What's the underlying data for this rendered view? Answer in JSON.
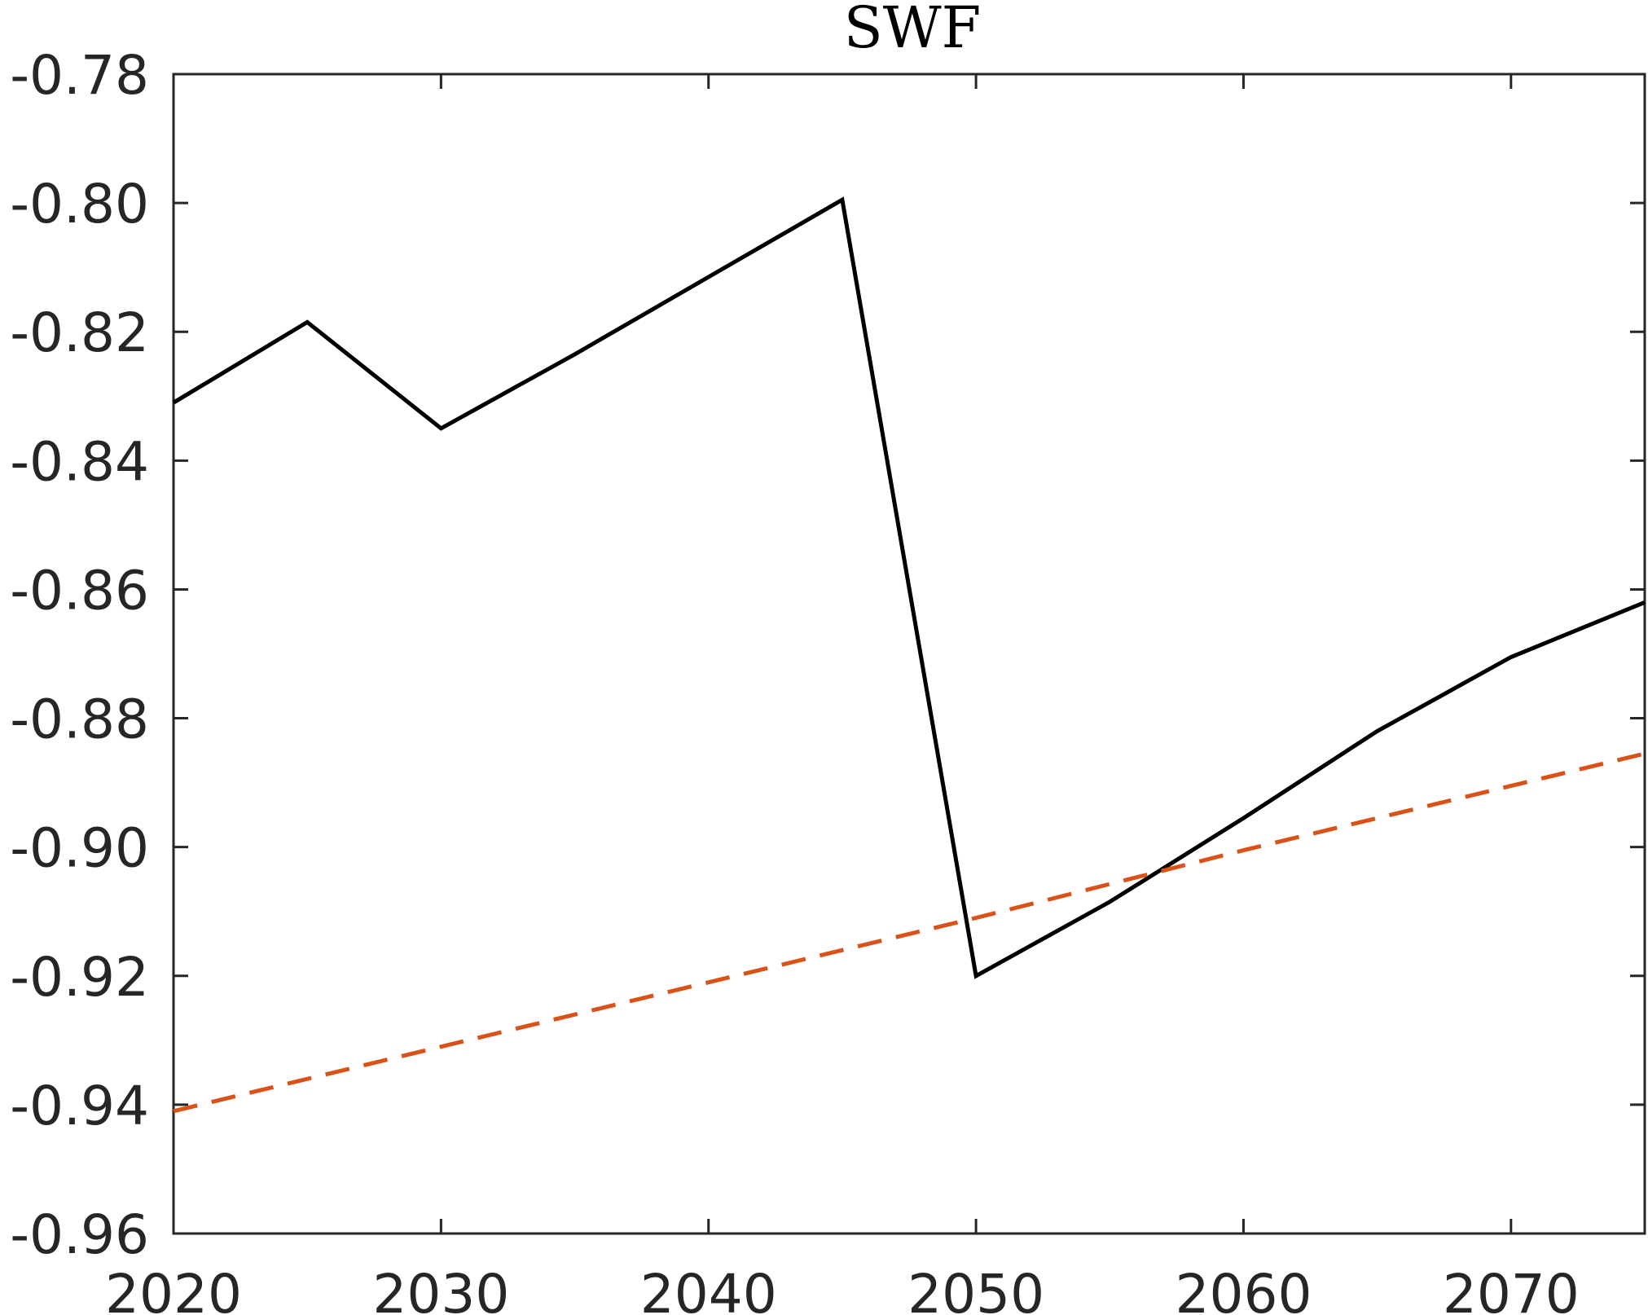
{
  "chart_data": {
    "type": "line",
    "title": "SWF",
    "xlabel": "",
    "ylabel": "",
    "xlim": [
      2020,
      2075
    ],
    "ylim": [
      -0.96,
      -0.78
    ],
    "xticks": [
      2020,
      2030,
      2040,
      2050,
      2060,
      2070
    ],
    "xtick_labels": [
      "2020",
      "2030",
      "2040",
      "2050",
      "2060",
      "2070"
    ],
    "yticks": [
      -0.78,
      -0.8,
      -0.82,
      -0.84,
      -0.86,
      -0.88,
      -0.9,
      -0.92,
      -0.94,
      -0.96
    ],
    "ytick_labels": [
      "-0.78",
      "-0.80",
      "-0.82",
      "-0.84",
      "-0.86",
      "-0.88",
      "-0.90",
      "-0.92",
      "-0.94",
      "-0.96"
    ],
    "grid": false,
    "legend": "none",
    "series": [
      {
        "style": "solid",
        "color": "#000000",
        "x": [
          2020,
          2025,
          2030,
          2035,
          2040,
          2045,
          2050,
          2055,
          2060,
          2065,
          2070,
          2075
        ],
        "y": [
          -0.831,
          -0.8185,
          -0.835,
          -0.8235,
          -0.8115,
          -0.7995,
          -0.92,
          -0.9085,
          -0.8955,
          -0.882,
          -0.8705,
          -0.862
        ]
      },
      {
        "style": "dashed",
        "color": "#D95319",
        "x": [
          2020,
          2030,
          2040,
          2050,
          2060,
          2070,
          2075
        ],
        "y": [
          -0.941,
          -0.931,
          -0.921,
          -0.911,
          -0.9005,
          -0.8905,
          -0.8855
        ]
      }
    ]
  }
}
